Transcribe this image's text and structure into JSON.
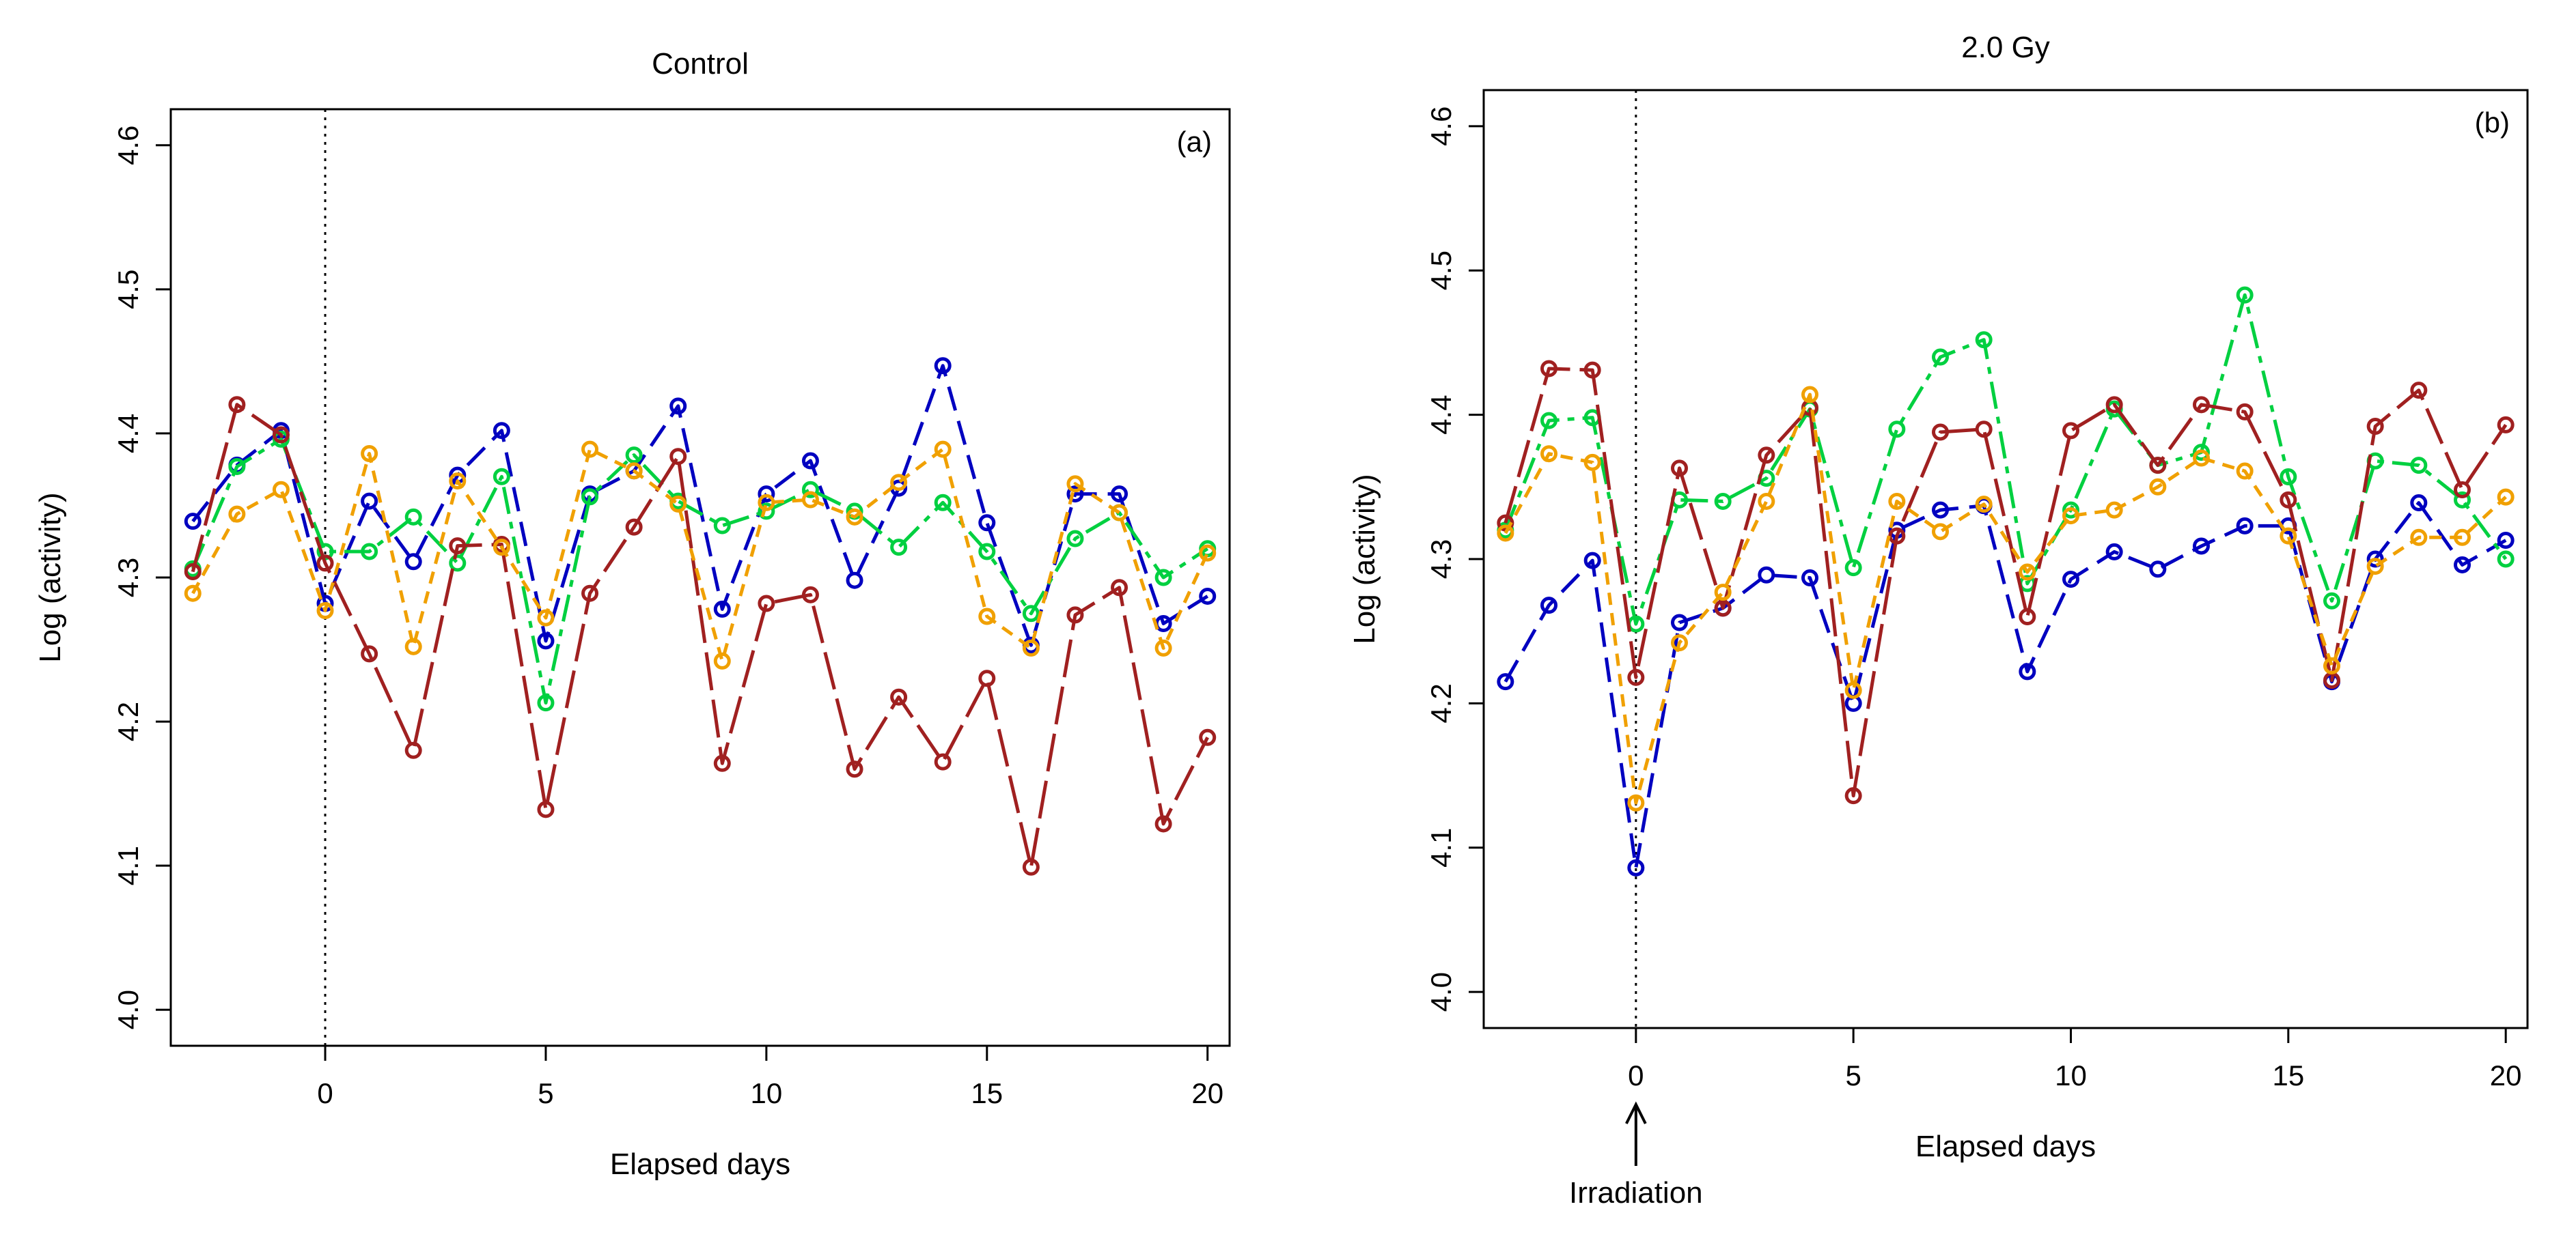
{
  "chart_data": [
    {
      "type": "line",
      "title": "Control",
      "panel_label": "(a)",
      "xlabel": "Elapsed days",
      "ylabel": "Log (activity)",
      "xlim": [
        -3.5,
        20.5
      ],
      "ylim": [
        3.975,
        4.625
      ],
      "xticks": [
        0,
        5,
        10,
        15,
        20
      ],
      "xtick_labels": [
        "0",
        "5",
        "10",
        "15",
        "20"
      ],
      "yticks": [
        4.0,
        4.1,
        4.2,
        4.3,
        4.4,
        4.5,
        4.6
      ],
      "ytick_labels": [
        "4.0",
        "4.1",
        "4.2",
        "4.3",
        "4.4",
        "4.5",
        "4.6"
      ],
      "vline_x": 0,
      "grid": false,
      "x": [
        -3,
        -2,
        -1,
        0,
        1,
        2,
        3,
        4,
        5,
        6,
        7,
        8,
        9,
        10,
        11,
        12,
        13,
        14,
        15,
        16,
        17,
        18,
        19,
        20
      ],
      "series": [
        {
          "name": "blue",
          "color": "#0000c0",
          "dash": "36 16",
          "values": [
            4.339,
            4.378,
            4.402,
            4.282,
            4.353,
            4.311,
            4.371,
            4.402,
            4.256,
            4.358,
            4.374,
            4.419,
            4.278,
            4.358,
            4.381,
            4.298,
            4.362,
            4.447,
            4.338,
            4.253,
            4.358,
            4.358,
            4.268,
            4.287
          ]
        },
        {
          "name": "green",
          "color": "#00d040",
          "dash": "40 12 10 12",
          "values": [
            4.306,
            4.377,
            4.396,
            4.318,
            4.318,
            4.342,
            4.31,
            4.37,
            4.213,
            4.356,
            4.385,
            4.353,
            4.336,
            4.346,
            4.361,
            4.346,
            4.321,
            4.352,
            4.318,
            4.275,
            4.327,
            4.345,
            4.3,
            4.32
          ]
        },
        {
          "name": "red",
          "color": "#a02020",
          "dash": "56 14",
          "values": [
            4.304,
            4.42,
            4.399,
            4.31,
            4.247,
            4.18,
            4.322,
            4.323,
            4.139,
            4.289,
            4.335,
            4.384,
            4.171,
            4.282,
            4.288,
            4.167,
            4.217,
            4.172,
            4.23,
            4.099,
            4.274,
            4.293,
            4.129,
            4.189
          ]
        },
        {
          "name": "orange",
          "color": "#f0a000",
          "dash": "18 12",
          "values": [
            4.289,
            4.344,
            4.361,
            4.277,
            4.386,
            4.252,
            4.367,
            4.321,
            4.272,
            4.389,
            4.374,
            4.351,
            4.242,
            4.352,
            4.354,
            4.342,
            4.366,
            4.389,
            4.273,
            4.251,
            4.365,
            4.345,
            4.251,
            4.317
          ]
        }
      ]
    },
    {
      "type": "line",
      "title": "2.0 Gy",
      "panel_label": "(b)",
      "xlabel": "Elapsed days",
      "ylabel": "Log (activity)",
      "annotation": "Irradiation",
      "xlim": [
        -3.5,
        20.5
      ],
      "ylim": [
        3.975,
        4.625
      ],
      "xticks": [
        0,
        5,
        10,
        15,
        20
      ],
      "xtick_labels": [
        "0",
        "5",
        "10",
        "15",
        "20"
      ],
      "yticks": [
        4.0,
        4.1,
        4.2,
        4.3,
        4.4,
        4.5,
        4.6
      ],
      "ytick_labels": [
        "4.0",
        "4.1",
        "4.2",
        "4.3",
        "4.4",
        "4.5",
        "4.6"
      ],
      "vline_x": 0,
      "grid": false,
      "x": [
        -3,
        -2,
        -1,
        0,
        1,
        2,
        3,
        4,
        5,
        6,
        7,
        8,
        9,
        10,
        11,
        12,
        13,
        14,
        15,
        16,
        17,
        18,
        19,
        20
      ],
      "series": [
        {
          "name": "blue",
          "color": "#0000c0",
          "dash": "36 16",
          "values": [
            4.215,
            4.268,
            4.299,
            4.086,
            4.256,
            4.266,
            4.289,
            4.287,
            4.2,
            4.32,
            4.334,
            4.337,
            4.222,
            4.286,
            4.305,
            4.293,
            4.309,
            4.323,
            4.323,
            4.215,
            4.3,
            4.339,
            4.296,
            4.313
          ]
        },
        {
          "name": "green",
          "color": "#00d040",
          "dash": "40 12 10 12",
          "values": [
            4.32,
            4.396,
            4.398,
            4.255,
            4.341,
            4.34,
            4.356,
            4.404,
            4.294,
            4.39,
            4.44,
            4.452,
            4.283,
            4.334,
            4.404,
            4.365,
            4.374,
            4.483,
            4.357,
            4.271,
            4.368,
            4.365,
            4.341,
            4.3
          ]
        },
        {
          "name": "red",
          "color": "#a02020",
          "dash": "56 14",
          "values": [
            4.325,
            4.432,
            4.431,
            4.218,
            4.363,
            4.266,
            4.372,
            4.405,
            4.136,
            4.316,
            4.388,
            4.39,
            4.26,
            4.389,
            4.407,
            4.365,
            4.407,
            4.402,
            4.341,
            4.216,
            4.392,
            4.417,
            4.348,
            4.393
          ]
        },
        {
          "name": "orange",
          "color": "#f0a000",
          "dash": "18 12",
          "values": [
            4.318,
            4.373,
            4.367,
            4.131,
            4.242,
            4.277,
            4.34,
            4.414,
            4.209,
            4.34,
            4.319,
            4.338,
            4.291,
            4.33,
            4.334,
            4.35,
            4.37,
            4.361,
            4.316,
            4.226,
            4.295,
            4.315,
            4.315,
            4.343
          ]
        }
      ]
    }
  ]
}
